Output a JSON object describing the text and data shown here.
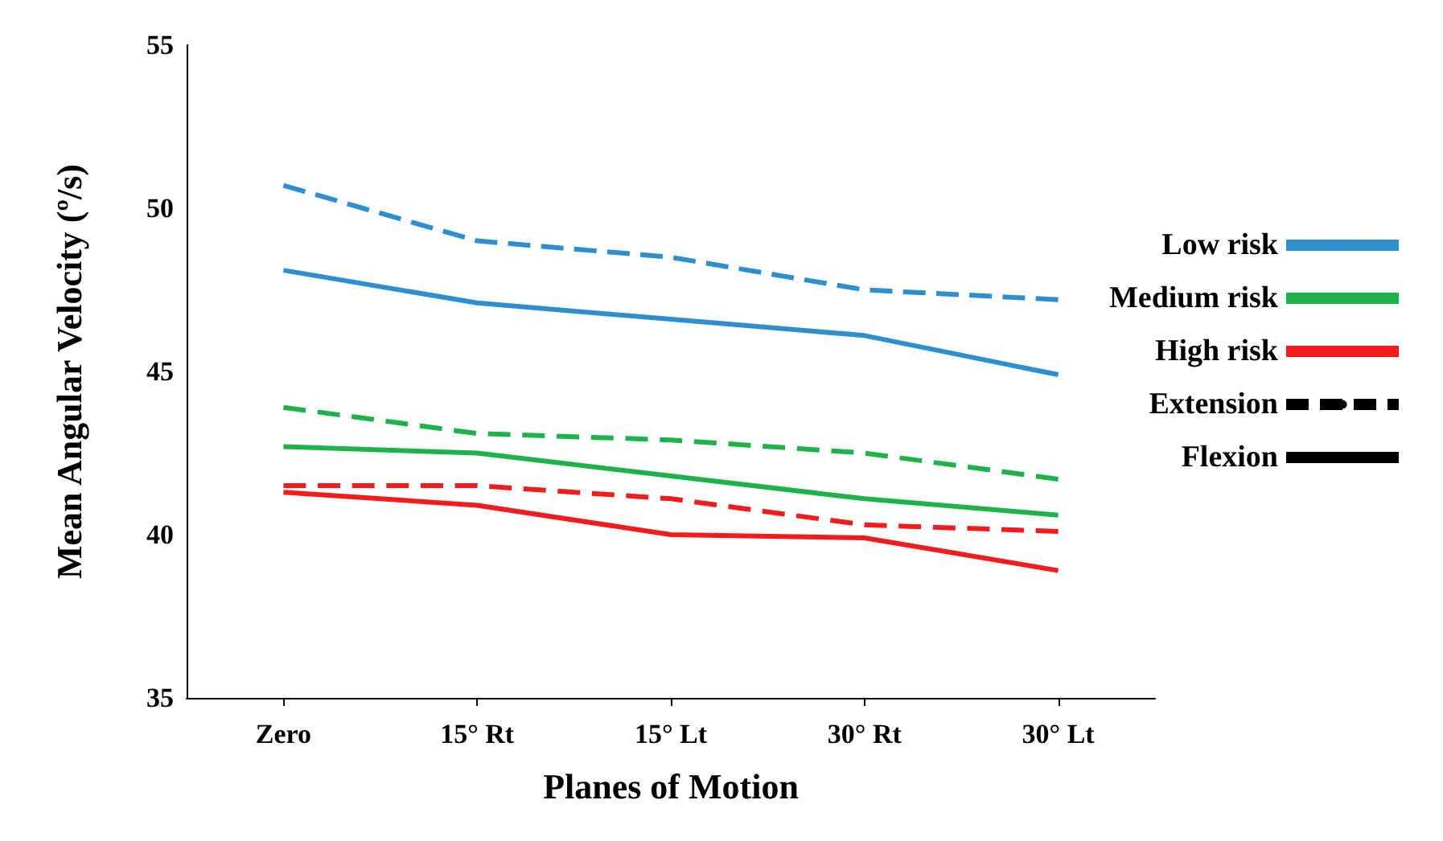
{
  "chart_data": {
    "type": "line",
    "xlabel": "Planes of Motion",
    "ylabel": "Mean Angular Velocity (º/s)",
    "categories": [
      "Zero",
      "15° Rt",
      "15° Lt",
      "30° Rt",
      "30° Lt"
    ],
    "series": [
      {
        "color": "#2e8fcf",
        "line_style": "dashed",
        "values": [
          50.7,
          49.0,
          48.5,
          47.5,
          47.2
        ]
      },
      {
        "name": "Low risk",
        "color": "#2e8fcf",
        "line_style": "solid",
        "values": [
          48.1,
          47.1,
          46.6,
          46.1,
          44.9
        ]
      },
      {
        "color": "#1db34a",
        "line_style": "dashed",
        "values": [
          43.9,
          43.1,
          42.9,
          42.5,
          41.7
        ]
      },
      {
        "name": "Medium risk",
        "color": "#1db34a",
        "line_style": "solid",
        "values": [
          42.7,
          42.5,
          41.8,
          41.1,
          40.6
        ]
      },
      {
        "color": "#f21c1c",
        "line_style": "dashed",
        "values": [
          41.5,
          41.5,
          41.1,
          40.3,
          40.1
        ]
      },
      {
        "name": "High risk",
        "color": "#f21c1c",
        "line_style": "solid",
        "values": [
          41.3,
          40.9,
          40.0,
          39.9,
          38.9
        ]
      }
    ],
    "annotations": [
      "Extension",
      "Flexion"
    ],
    "ylim": [
      35,
      55
    ],
    "yticks": [
      35,
      40,
      45,
      50,
      55
    ],
    "grid": false,
    "legend": "right",
    "marker": "none"
  }
}
